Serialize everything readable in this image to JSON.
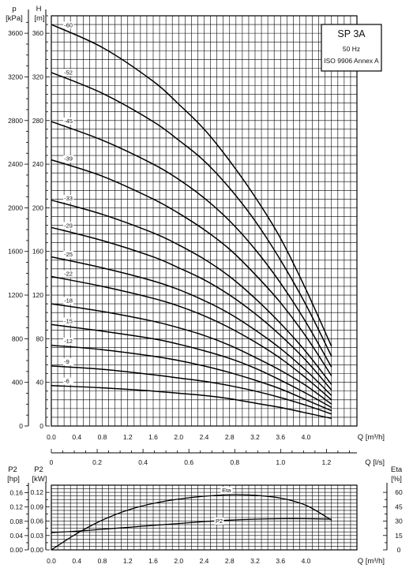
{
  "chart_data": [
    {
      "type": "line",
      "title": "SP 3A",
      "subtitle_lines": [
        "50 Hz",
        "ISO 9906 Annex A"
      ],
      "xlabel": "Q [m³/h]",
      "x_tick_labels": [
        "0.0",
        "0.4",
        "0.8",
        "1.2",
        "1.6",
        "2.0",
        "2.4",
        "2.8",
        "3.2",
        "3.6",
        "4.0"
      ],
      "xlim": [
        0,
        4.8
      ],
      "y_left_label": [
        "p",
        "[kPa]"
      ],
      "y_left_tick_labels": [
        "0",
        "400",
        "800",
        "1200",
        "1600",
        "2000",
        "2400",
        "2800",
        "3200",
        "3600"
      ],
      "y_left_range_kpa": [
        0,
        3760
      ],
      "y_right_label": [
        "H",
        "[m]"
      ],
      "y_right_tick_labels": [
        "0",
        "40",
        "80",
        "120",
        "160",
        "200",
        "240",
        "280",
        "320",
        "360"
      ],
      "ylim": [
        0,
        376
      ],
      "grid": true,
      "series": [
        {
          "name": "-60",
          "x": [
            0,
            0.8,
            1.6,
            2.0,
            2.4,
            2.8,
            3.2,
            3.6,
            4.0,
            4.4
          ],
          "y": [
            368,
            347,
            316,
            295,
            272,
            243,
            210,
            172,
            125,
            73
          ]
        },
        {
          "name": "-52",
          "x": [
            0,
            0.8,
            1.6,
            2.0,
            2.4,
            2.8,
            3.2,
            3.6,
            4.0,
            4.4
          ],
          "y": [
            324,
            305,
            279,
            262,
            243,
            218,
            188,
            152,
            111,
            64
          ]
        },
        {
          "name": "-45",
          "x": [
            0,
            0.8,
            1.6,
            2.0,
            2.4,
            2.8,
            3.2,
            3.6,
            4.0,
            4.4
          ],
          "y": [
            279,
            262,
            240,
            226,
            209,
            188,
            162,
            131,
            95,
            54
          ]
        },
        {
          "name": "-39",
          "x": [
            0,
            0.8,
            1.6,
            2.0,
            2.4,
            2.8,
            3.2,
            3.6,
            4.0,
            4.4
          ],
          "y": [
            244,
            229,
            208,
            195,
            180,
            162,
            139,
            113,
            82,
            46
          ]
        },
        {
          "name": "-33",
          "x": [
            0,
            0.8,
            1.6,
            2.0,
            2.4,
            2.8,
            3.2,
            3.6,
            4.0,
            4.4
          ],
          "y": [
            207,
            194,
            177,
            166,
            153,
            137,
            117,
            94,
            68,
            38
          ]
        },
        {
          "name": "-29",
          "x": [
            0,
            0.8,
            1.6,
            2.0,
            2.4,
            2.8,
            3.2,
            3.6,
            4.0,
            4.4
          ],
          "y": [
            182,
            170,
            155,
            145,
            134,
            120,
            103,
            83,
            60,
            33
          ]
        },
        {
          "name": "-25",
          "x": [
            0,
            0.8,
            1.6,
            2.0,
            2.4,
            2.8,
            3.2,
            3.6,
            4.0,
            4.4
          ],
          "y": [
            155,
            145,
            133,
            125,
            115,
            103,
            88,
            71,
            51,
            28
          ]
        },
        {
          "name": "-22",
          "x": [
            0,
            0.8,
            1.6,
            2.0,
            2.4,
            2.8,
            3.2,
            3.6,
            4.0,
            4.4
          ],
          "y": [
            137,
            128,
            117,
            110,
            101,
            90,
            77,
            62,
            44,
            24
          ]
        },
        {
          "name": "-18",
          "x": [
            0,
            0.8,
            1.6,
            2.0,
            2.4,
            2.8,
            3.2,
            3.6,
            4.0,
            4.4
          ],
          "y": [
            112,
            105,
            96,
            90,
            83,
            74,
            63,
            51,
            37,
            20
          ]
        },
        {
          "name": "-15",
          "x": [
            0,
            0.8,
            1.6,
            2.0,
            2.4,
            2.8,
            3.2,
            3.6,
            4.0,
            4.4
          ],
          "y": [
            93,
            87,
            80,
            75,
            69,
            62,
            53,
            42,
            30,
            17
          ]
        },
        {
          "name": "-12",
          "x": [
            0,
            0.8,
            1.6,
            2.0,
            2.4,
            2.8,
            3.2,
            3.6,
            4.0,
            4.4
          ],
          "y": [
            74,
            70,
            64,
            60,
            55,
            49,
            42,
            34,
            24,
            14
          ]
        },
        {
          "name": "-9",
          "x": [
            0,
            0.8,
            1.6,
            2.0,
            2.4,
            2.8,
            3.2,
            3.6,
            4.0,
            4.4
          ],
          "y": [
            55,
            52,
            47,
            44,
            41,
            37,
            32,
            26,
            19,
            11
          ]
        },
        {
          "name": "-6",
          "x": [
            0,
            0.8,
            1.6,
            2.0,
            2.4,
            2.8,
            3.2,
            3.6,
            4.0,
            4.4
          ],
          "y": [
            37,
            35,
            32,
            30,
            28,
            25,
            21,
            17,
            12,
            7
          ]
        }
      ]
    },
    {
      "type": "line",
      "xlabel": "Q [l/s]",
      "x_tick_labels": [
        "0",
        "0.2",
        "0.4",
        "0.6",
        "0.8",
        "1.0",
        "1.2"
      ],
      "xlim": [
        0,
        1.333
      ]
    },
    {
      "type": "line",
      "xlabel": "Q [m³/h]",
      "x_tick_labels": [
        "0.0",
        "0.4",
        "0.8",
        "1.2",
        "1.6",
        "2.0",
        "2.4",
        "2.8",
        "3.2",
        "3.6",
        "4.0"
      ],
      "xlim": [
        0,
        4.8
      ],
      "y_left_outer_label": [
        "P2",
        "[hp]"
      ],
      "y_left_outer_tick_labels": [
        "0.00",
        "0.04",
        "0.08",
        "0.12",
        "0.16"
      ],
      "y_left_label": [
        "P2",
        "[kW]"
      ],
      "y_left_tick_labels": [
        "0.00",
        "0.03",
        "0.06",
        "0.09",
        "0.12"
      ],
      "ylim": [
        0,
        0.135
      ],
      "y_right_label": [
        "Eta",
        "[%]"
      ],
      "y_right_tick_labels": [
        "0",
        "15",
        "30",
        "45",
        "60"
      ],
      "y_right_range": [
        0,
        67.5
      ],
      "grid": true,
      "series": [
        {
          "name": "Eta",
          "axis": "right",
          "x": [
            0,
            0.4,
            0.8,
            1.2,
            1.6,
            2.0,
            2.4,
            2.8,
            3.2,
            3.6,
            4.0,
            4.4
          ],
          "y": [
            0,
            17,
            31,
            41.5,
            48.5,
            53,
            56,
            57.5,
            57,
            54,
            46.5,
            31
          ]
        },
        {
          "name": "P2",
          "axis": "left",
          "x": [
            0,
            0.4,
            0.8,
            1.2,
            1.6,
            2.0,
            2.4,
            2.8,
            3.2,
            3.6,
            4.0,
            4.4
          ],
          "y": [
            0.036,
            0.039,
            0.043,
            0.047,
            0.051,
            0.055,
            0.059,
            0.062,
            0.064,
            0.065,
            0.065,
            0.064
          ]
        }
      ]
    }
  ]
}
